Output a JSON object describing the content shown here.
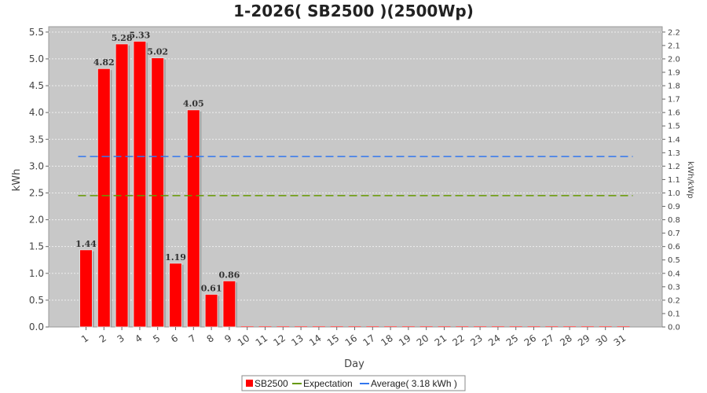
{
  "chart_data": {
    "type": "bar",
    "title": "1-2026( SB2500 )(2500Wp)",
    "xlabel": "Day",
    "ylabel": "kWh",
    "y2label": "kWh/kWp",
    "categories": [
      "1",
      "2",
      "3",
      "4",
      "5",
      "6",
      "7",
      "8",
      "9",
      "10",
      "11",
      "12",
      "13",
      "14",
      "15",
      "16",
      "17",
      "18",
      "19",
      "20",
      "21",
      "22",
      "23",
      "24",
      "25",
      "26",
      "27",
      "28",
      "29",
      "30",
      "31"
    ],
    "series": [
      {
        "name": "SB2500",
        "color": "#ff0000",
        "values": [
          1.44,
          4.82,
          5.28,
          5.33,
          5.02,
          1.19,
          4.05,
          0.61,
          0.86,
          0,
          0,
          0,
          0,
          0,
          0,
          0,
          0,
          0,
          0,
          0,
          0,
          0,
          0,
          0,
          0,
          0,
          0,
          0,
          0,
          0,
          0
        ],
        "labels": [
          "1.44",
          "4.82",
          "5.28",
          "5.33",
          "5.02",
          "1.19",
          "4.05",
          "0.61",
          "0.86"
        ]
      }
    ],
    "lines": [
      {
        "name": "Expectation",
        "value": 2.45,
        "color": "#669900",
        "style": "dashed"
      },
      {
        "name": "Average( 3.18 kWh )",
        "value": 3.18,
        "color": "#3377ee",
        "style": "dashed"
      }
    ],
    "ylim": [
      0,
      5.6
    ],
    "yticks": [
      "0.0",
      "0.5",
      "1.0",
      "1.5",
      "2.0",
      "2.5",
      "3.0",
      "3.5",
      "4.0",
      "4.5",
      "5.0",
      "5.5"
    ],
    "y2lim": [
      0,
      2.24
    ],
    "y2ticks": [
      "0.0",
      "0.1",
      "0.2",
      "0.3",
      "0.4",
      "0.5",
      "0.6",
      "0.7",
      "0.8",
      "0.9",
      "1.0",
      "1.1",
      "1.2",
      "1.3",
      "1.4",
      "1.5",
      "1.6",
      "1.7",
      "1.8",
      "1.9",
      "2.0",
      "2.1",
      "2.2"
    ],
    "grid": true,
    "legend_position": "bottom-center",
    "plot_background": "#c8c8c8"
  }
}
